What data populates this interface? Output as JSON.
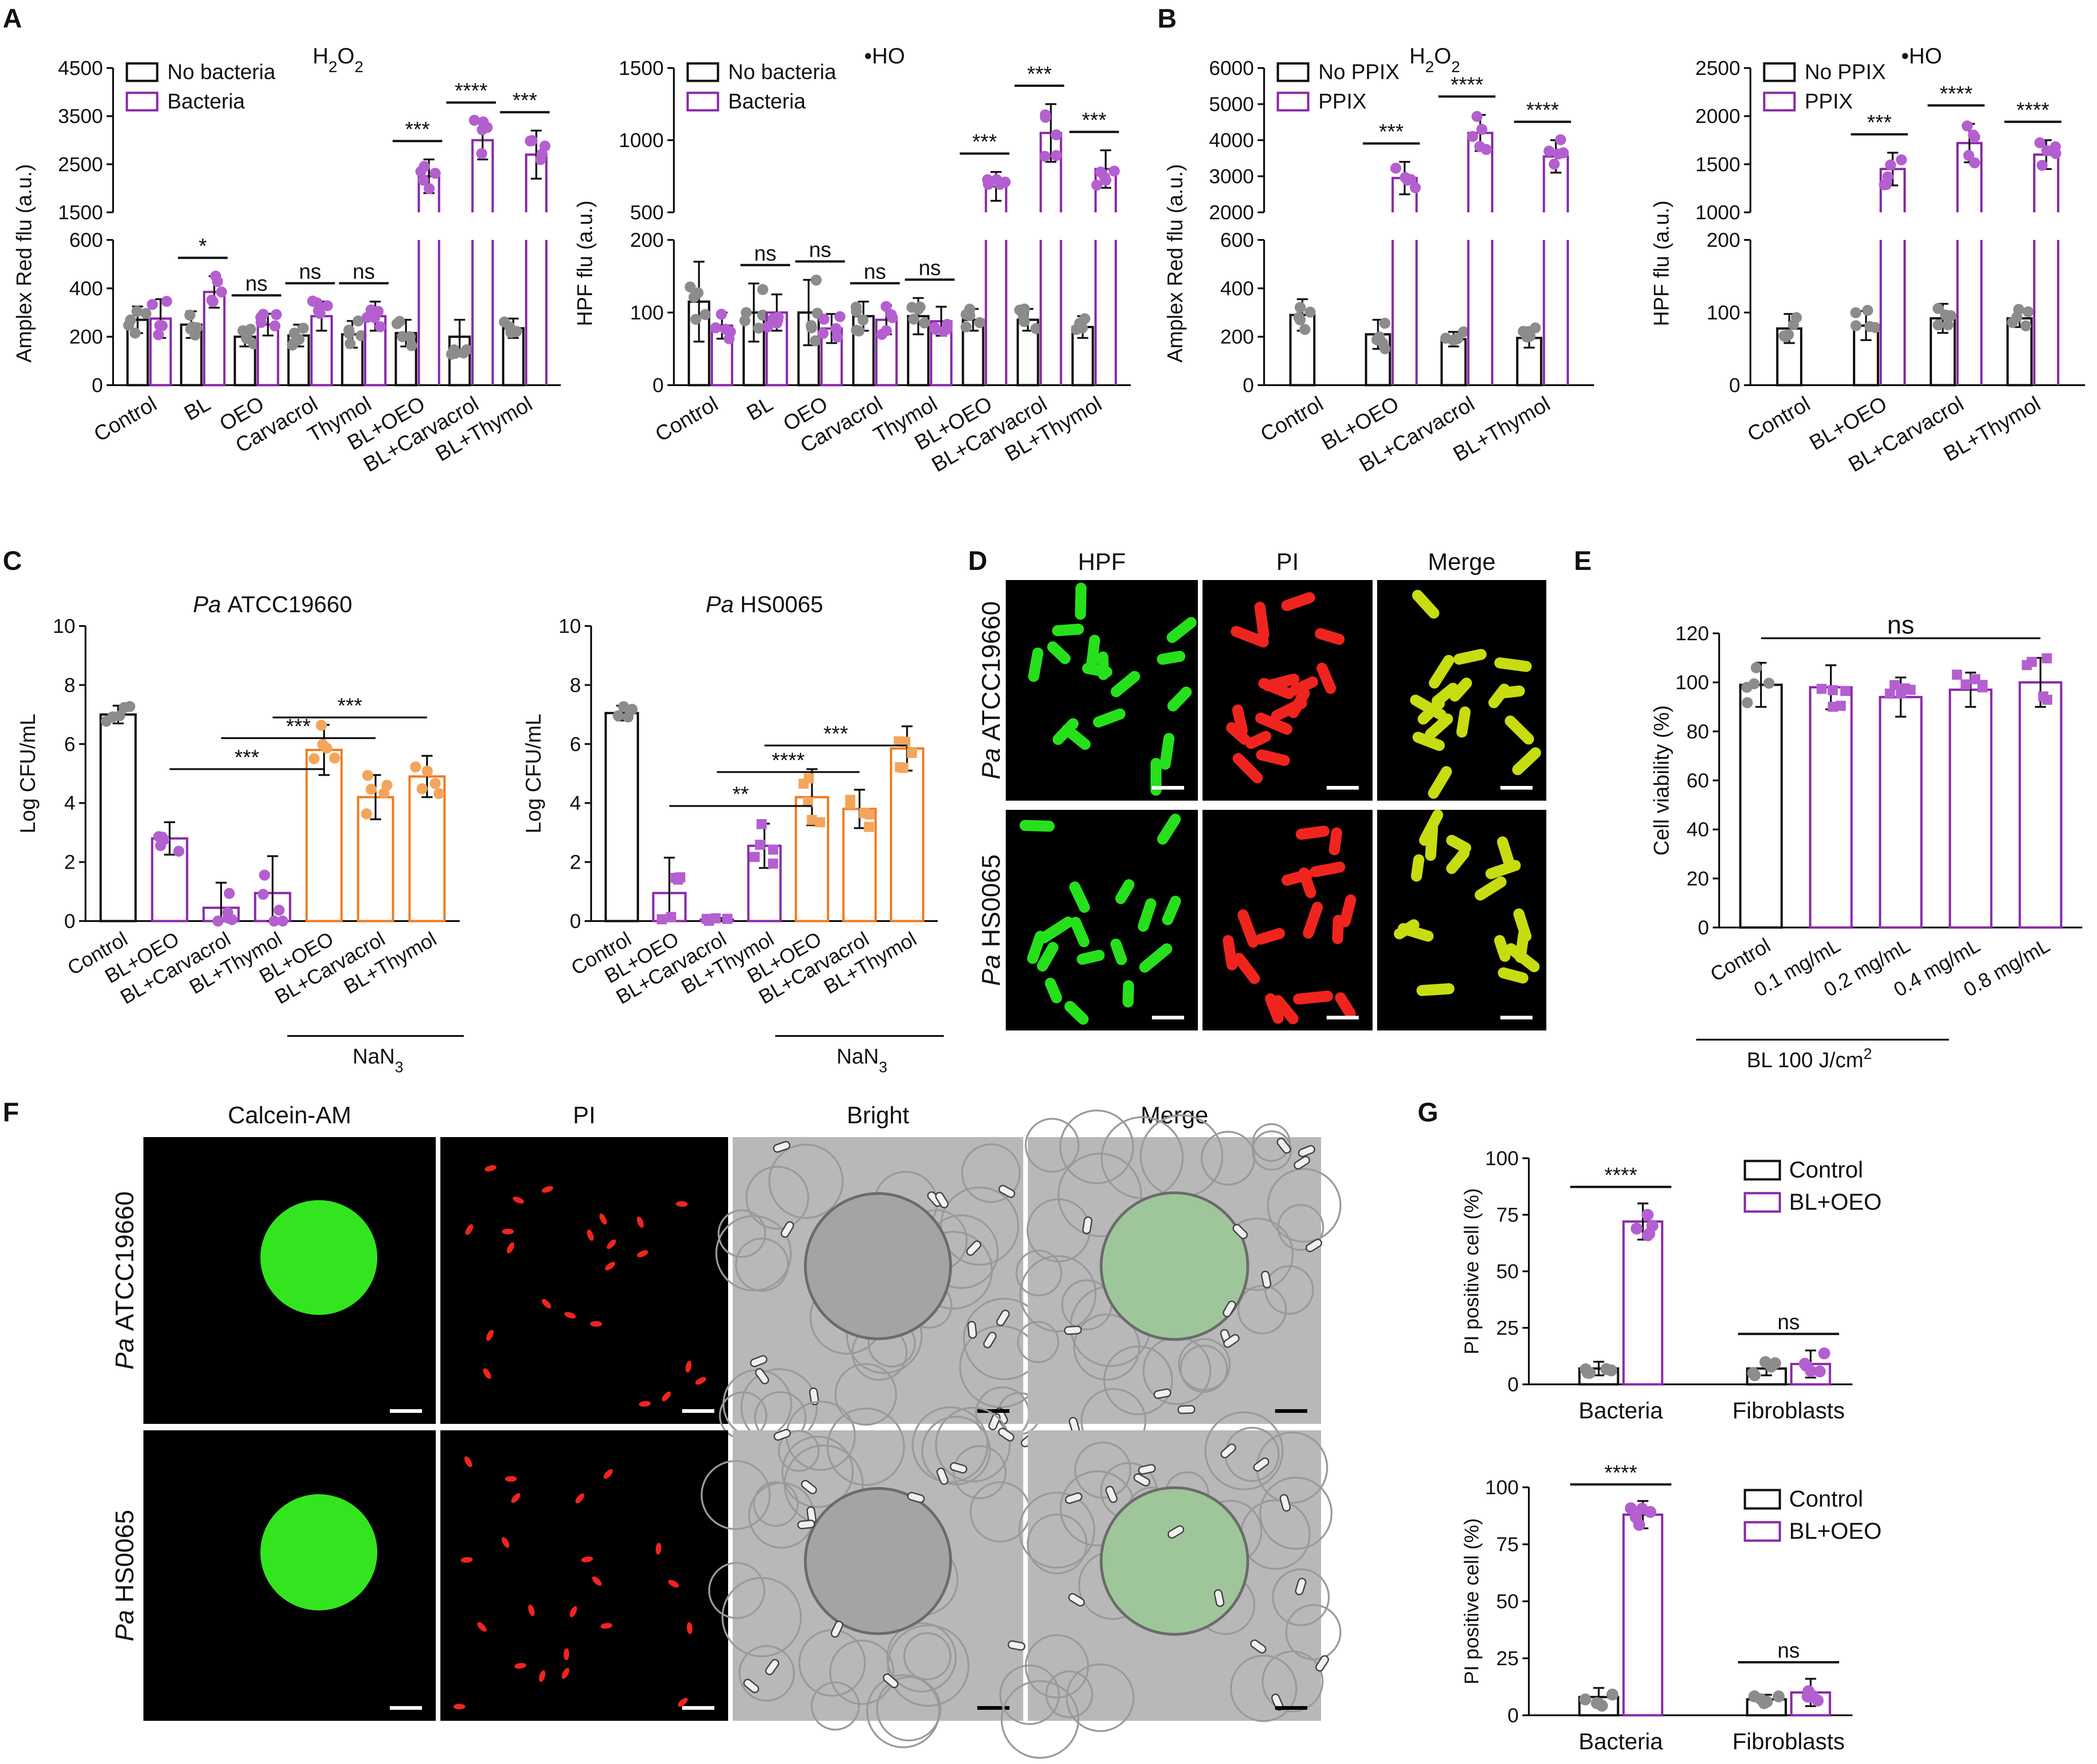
{
  "colors": {
    "control_bar": "#111111",
    "purple": "#8a2aa8",
    "purple_point": "#b45fd0",
    "orange": "#ef7d22",
    "orange_point": "#f4a55c",
    "gray_point": "#8c8c8c",
    "hpf_green": "#27e01c",
    "pi_red": "#f0241e",
    "merge_yellow": "#c8dc12"
  },
  "panels": {
    "A": "A",
    "B": "B",
    "C": "C",
    "D": "D",
    "E": "E",
    "F": "F",
    "G": "G"
  },
  "micrographs": {
    "D": {
      "columns": [
        "HPF",
        "PI",
        "Merge"
      ],
      "rows": [
        {
          "prefix": "Pa",
          "strain": "ATCC19660"
        },
        {
          "prefix": "Pa",
          "strain": "HS0065"
        }
      ]
    },
    "F": {
      "columns": [
        "Calcein-AM",
        "PI",
        "Bright",
        "Merge"
      ],
      "rows": [
        {
          "prefix": "Pa",
          "strain": "ATCC19660"
        },
        {
          "prefix": "Pa",
          "strain": "HS0065"
        }
      ]
    }
  },
  "chart_data": [
    {
      "id": "A1",
      "type": "bar",
      "panel": "A",
      "title": "H2O2",
      "ylabel": "Amplex Red flu (a.u.)",
      "y_axis_break": {
        "lower": [
          0,
          600
        ],
        "upper": [
          1500,
          4500
        ]
      },
      "yticks_lower": [
        0,
        200,
        400,
        600
      ],
      "yticks_upper": [
        1500,
        2500,
        3500,
        4500
      ],
      "categories": [
        "Control",
        "BL",
        "OEO",
        "Carvacrol",
        "Thymol",
        "BL+OEO",
        "BL+Carvacrol",
        "BL+Thymol"
      ],
      "series": [
        {
          "name": "No bacteria",
          "values": [
            270,
            250,
            200,
            205,
            210,
            215,
            200,
            235
          ],
          "errors": [
            55,
            55,
            40,
            45,
            55,
            55,
            70,
            40
          ]
        },
        {
          "name": "Bacteria",
          "values": [
            275,
            385,
            250,
            285,
            285,
            2250,
            3000,
            2700
          ],
          "errors": [
            80,
            65,
            45,
            60,
            60,
            350,
            400,
            500
          ]
        }
      ],
      "significance": [
        "",
        "*",
        "ns",
        "ns",
        "ns",
        "***",
        "****",
        "***"
      ],
      "legend": "top-left"
    },
    {
      "id": "A2",
      "type": "bar",
      "panel": "A",
      "title": "•HO",
      "ylabel": "HPF flu (a.u.)",
      "y_axis_break": {
        "lower": [
          0,
          200
        ],
        "upper": [
          500,
          1500
        ]
      },
      "yticks_lower": [
        0,
        100,
        200
      ],
      "yticks_upper": [
        500,
        1000,
        1500
      ],
      "categories": [
        "Control",
        "BL",
        "OEO",
        "Carvacrol",
        "Thymol",
        "BL+OEO",
        "BL+Carvacrol",
        "BL+Thymol"
      ],
      "series": [
        {
          "name": "No bacteria",
          "values": [
            115,
            100,
            100,
            95,
            95,
            90,
            90,
            80
          ],
          "errors": [
            55,
            40,
            45,
            20,
            25,
            15,
            15,
            15
          ]
        },
        {
          "name": "Bacteria",
          "values": [
            82,
            100,
            78,
            90,
            88,
            680,
            1050,
            800
          ],
          "errors": [
            18,
            25,
            20,
            20,
            20,
            100,
            200,
            130
          ]
        }
      ],
      "significance": [
        "",
        "ns",
        "ns",
        "ns",
        "ns",
        "***",
        "***",
        "***"
      ],
      "legend": "top-left"
    },
    {
      "id": "B1",
      "type": "bar",
      "panel": "B",
      "title": "H2O2",
      "ylabel": "Amplex Red flu (a.u.)",
      "y_axis_break": {
        "lower": [
          0,
          600
        ],
        "upper": [
          2000,
          6000
        ]
      },
      "yticks_lower": [
        0,
        200,
        400,
        600
      ],
      "yticks_upper": [
        2000,
        3000,
        4000,
        5000,
        6000
      ],
      "categories": [
        "Control",
        "BL+OEO",
        "BL+Carvacrol",
        "BL+Thymol"
      ],
      "series": [
        {
          "name": "No PPIX",
          "values": [
            290,
            210,
            190,
            195
          ],
          "errors": [
            65,
            60,
            30,
            40
          ]
        },
        {
          "name": "PPIX",
          "values": [
            null,
            2950,
            4200,
            3550
          ],
          "errors": [
            null,
            450,
            500,
            450
          ]
        }
      ],
      "significance": [
        "",
        "***",
        "****",
        "****"
      ],
      "legend": "top-left"
    },
    {
      "id": "B2",
      "type": "bar",
      "panel": "B",
      "title": "•HO",
      "ylabel": "HPF flu (a.u.)",
      "y_axis_break": {
        "lower": [
          0,
          200
        ],
        "upper": [
          1000,
          2500
        ]
      },
      "yticks_lower": [
        0,
        100,
        200
      ],
      "yticks_upper": [
        1000,
        1500,
        2000,
        2500
      ],
      "categories": [
        "Control",
        "BL+OEO",
        "BL+Carvacrol",
        "BL+Thymol"
      ],
      "series": [
        {
          "name": "No PPIX",
          "values": [
            78,
            82,
            92,
            92
          ],
          "errors": [
            20,
            20,
            20,
            12
          ]
        },
        {
          "name": "PPIX",
          "values": [
            null,
            1450,
            1720,
            1600
          ],
          "errors": [
            null,
            170,
            200,
            150
          ]
        }
      ],
      "significance": [
        "",
        "***",
        "****",
        "****"
      ],
      "legend": "top-left"
    },
    {
      "id": "C1",
      "type": "bar",
      "panel": "C",
      "title_prefix": "Pa",
      "title": "ATCC19660",
      "ylabel": "Log CFU/mL",
      "ylim": [
        0,
        10
      ],
      "yticks": [
        0,
        2,
        4,
        6,
        8,
        10
      ],
      "categories": [
        "Control",
        "BL+OEO",
        "BL+Carvacrol",
        "BL+Thymol",
        "BL+OEO",
        "BL+Carvacrol",
        "BL+Thymol"
      ],
      "values": [
        7.0,
        2.8,
        0.45,
        0.95,
        5.8,
        4.2,
        4.9
      ],
      "errors": [
        0.3,
        0.55,
        0.85,
        1.25,
        0.85,
        0.75,
        0.7
      ],
      "group_label": "NaN3",
      "comparisons": [
        {
          "from": "BL+OEO",
          "to": "BL+OEO (NaN3)",
          "label": "***"
        },
        {
          "from": "BL+Carvacrol",
          "to": "BL+Carvacrol (NaN3)",
          "label": "***"
        },
        {
          "from": "BL+Thymol",
          "to": "BL+Thymol (NaN3)",
          "label": "***"
        }
      ]
    },
    {
      "id": "C2",
      "type": "bar",
      "panel": "C",
      "title_prefix": "Pa",
      "title": "HS0065",
      "ylabel": "Log CFU/mL",
      "ylim": [
        0,
        10
      ],
      "yticks": [
        0,
        2,
        4,
        6,
        8,
        10
      ],
      "categories": [
        "Control",
        "BL+OEO",
        "BL+Carvacrol",
        "BL+Thymol",
        "BL+OEO",
        "BL+Carvacrol",
        "BL+Thymol"
      ],
      "values": [
        7.05,
        0.95,
        0.05,
        2.55,
        4.2,
        3.8,
        5.85
      ],
      "errors": [
        0.25,
        1.2,
        0.05,
        0.75,
        0.95,
        0.65,
        0.75
      ],
      "group_label": "NaN3",
      "comparisons": [
        {
          "from": "BL+OEO",
          "to": "BL+OEO (NaN3)",
          "label": "**"
        },
        {
          "from": "BL+Carvacrol",
          "to": "BL+Carvacrol (NaN3)",
          "label": "****"
        },
        {
          "from": "BL+Thymol",
          "to": "BL+Thymol (NaN3)",
          "label": "***"
        }
      ]
    },
    {
      "id": "E",
      "type": "bar",
      "panel": "E",
      "ylabel": "Cell viability (%)",
      "ylim": [
        0,
        120
      ],
      "yticks": [
        0,
        20,
        40,
        60,
        80,
        100,
        120
      ],
      "categories": [
        "Control",
        "0.1 mg/mL",
        "0.2 mg/mL",
        "0.4 mg/mL",
        "0.8 mg/mL"
      ],
      "values": [
        99,
        98,
        94,
        97,
        100
      ],
      "errors": [
        9,
        9,
        8,
        7,
        10
      ],
      "group_label": "BL 100 J/cm2",
      "significance_all": "ns"
    },
    {
      "id": "G1",
      "type": "bar",
      "panel": "G",
      "ylabel": "PI positive cell (%)",
      "ylim": [
        0,
        100
      ],
      "yticks": [
        0,
        25,
        50,
        75,
        100
      ],
      "categories": [
        "Bacteria",
        "Fibroblasts"
      ],
      "series": [
        {
          "name": "Control",
          "values": [
            7,
            7
          ],
          "errors": [
            3,
            3
          ]
        },
        {
          "name": "BL+OEO",
          "values": [
            72,
            9
          ],
          "errors": [
            8,
            6
          ]
        }
      ],
      "significance": [
        "****",
        "ns"
      ],
      "legend": "top-right"
    },
    {
      "id": "G2",
      "type": "bar",
      "panel": "G",
      "ylabel": "PI positive cell (%)",
      "ylim": [
        0,
        100
      ],
      "yticks": [
        0,
        25,
        50,
        75,
        100
      ],
      "categories": [
        "Bacteria",
        "Fibroblasts"
      ],
      "series": [
        {
          "name": "Control",
          "values": [
            8,
            7
          ],
          "errors": [
            4,
            2
          ]
        },
        {
          "name": "BL+OEO",
          "values": [
            88,
            10
          ],
          "errors": [
            6,
            6
          ]
        }
      ],
      "significance": [
        "****",
        "ns"
      ],
      "legend": "top-right"
    }
  ]
}
